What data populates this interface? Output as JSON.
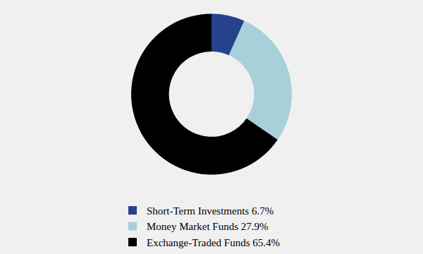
{
  "chart_data": {
    "type": "pie",
    "categories": [
      "Short-Term Investments 6.7%",
      "Money Market Funds 27.9%",
      "Exchange-Traded Funds 65.4%"
    ],
    "values": [
      6.7,
      27.9,
      65.4
    ],
    "colors": [
      "#26428b",
      "#a8d0d8",
      "#000000"
    ],
    "legend": "bottom",
    "data_labels": false
  }
}
